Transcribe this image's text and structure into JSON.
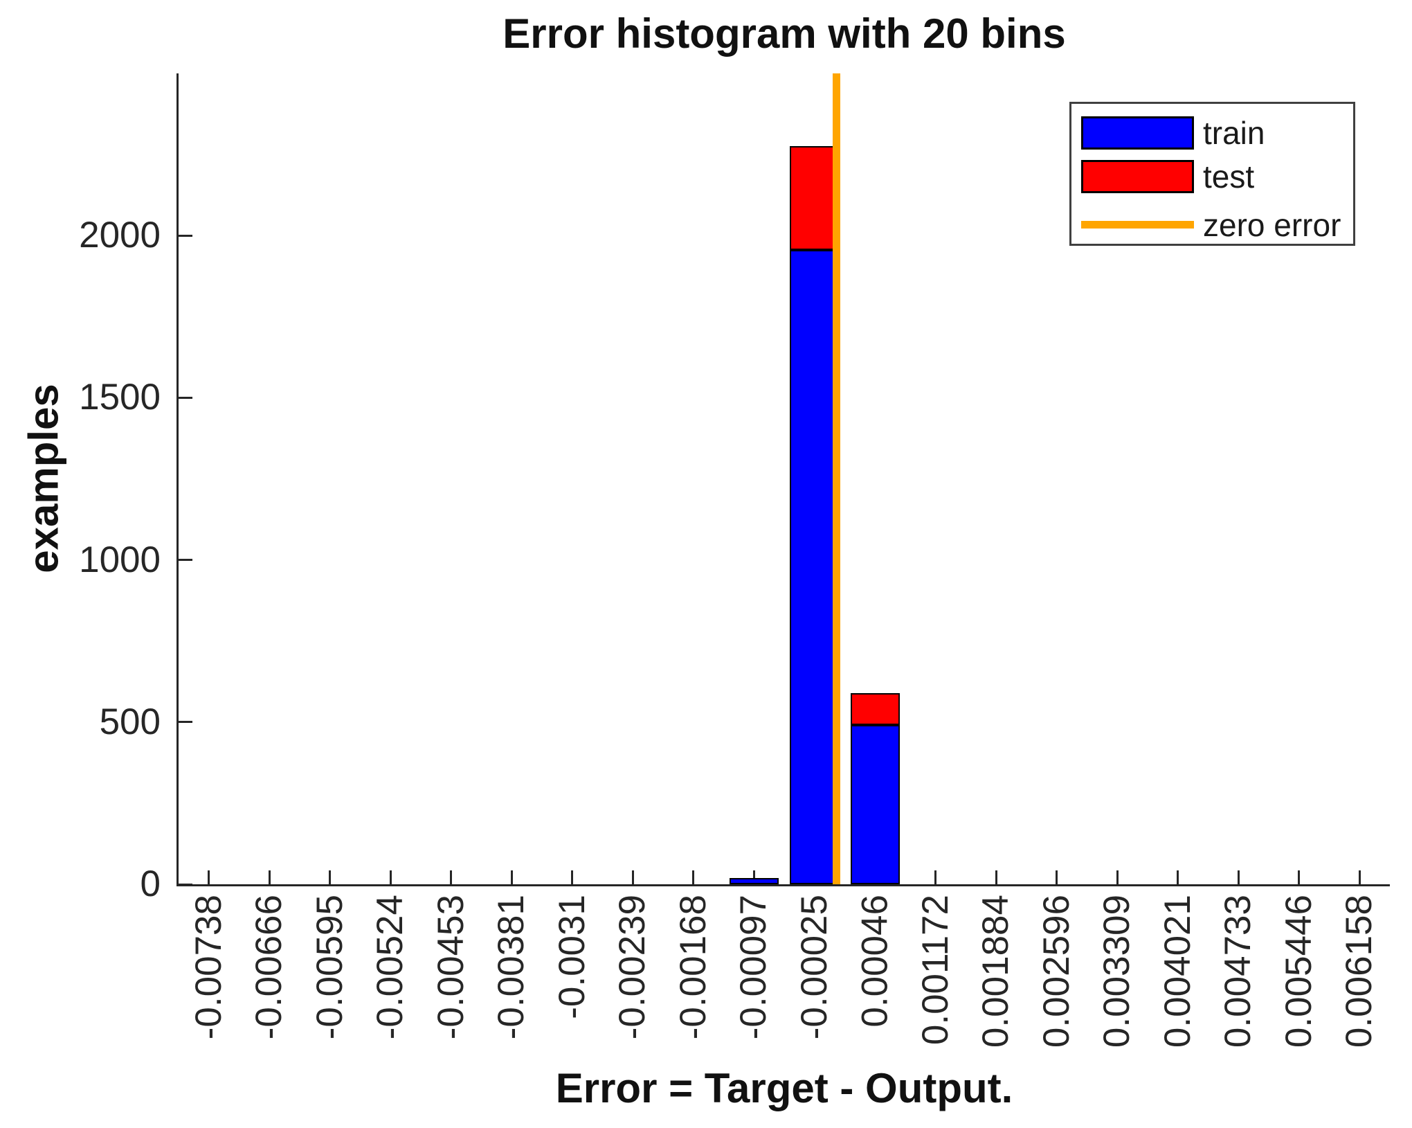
{
  "title": "Error histogram with 20 bins",
  "xlabel": "Error = Target - Output.",
  "ylabel": "examples",
  "legend": {
    "items": [
      {
        "label": "train",
        "color": "#0000FF",
        "type": "patch"
      },
      {
        "label": "test",
        "color": "#FF0000",
        "type": "patch"
      },
      {
        "label": "zero error",
        "color": "#FFA500",
        "type": "line"
      }
    ]
  },
  "colors": {
    "train": "#0000FF",
    "test": "#FF0000",
    "zero_error": "#FFA500",
    "axis": "#262626",
    "text": "#111111"
  },
  "chart_data": {
    "type": "bar",
    "stacked": true,
    "title": "Error histogram with 20 bins",
    "xlabel": "Error = Target - Output.",
    "ylabel": "examples",
    "categories": [
      "-0.00738",
      "-0.00666",
      "-0.00595",
      "-0.00524",
      "-0.00453",
      "-0.00381",
      "-0.0031",
      "-0.00239",
      "-0.00168",
      "-0.00097",
      "-0.00025",
      "0.00046",
      "0.001172",
      "0.001884",
      "0.002596",
      "0.003309",
      "0.004021",
      "0.004733",
      "0.005446",
      "0.006158"
    ],
    "series": [
      {
        "name": "train",
        "color": "#0000FF",
        "values": [
          0,
          0,
          0,
          0,
          0,
          0,
          0,
          0,
          0,
          20,
          1955,
          490,
          0,
          0,
          0,
          0,
          0,
          0,
          0,
          0
        ]
      },
      {
        "name": "test",
        "color": "#FF0000",
        "values": [
          0,
          0,
          0,
          0,
          0,
          0,
          0,
          0,
          0,
          0,
          320,
          100,
          0,
          0,
          0,
          0,
          0,
          0,
          0,
          0
        ]
      }
    ],
    "yticks": [
      0,
      500,
      1000,
      1500,
      2000
    ],
    "ylim": [
      0,
      2500
    ],
    "zero_line_value": 0,
    "grid": false,
    "legend_position": "top-right"
  }
}
